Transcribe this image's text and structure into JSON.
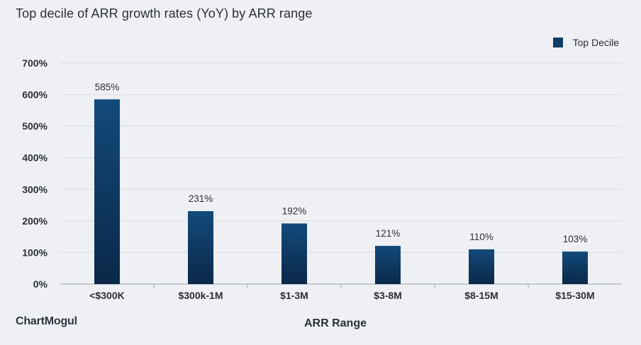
{
  "header": {
    "title": "Top decile of ARR growth rates (YoY) by ARR range"
  },
  "brand": {
    "name": "ChartMogul"
  },
  "chart_data": {
    "type": "bar",
    "title": "Top decile of ARR growth rates (YoY) by ARR range",
    "xlabel": "ARR Range",
    "ylabel": "",
    "categories": [
      "<$300K",
      "$300k-1M",
      "$1-3M",
      "$3-8M",
      "$8-15M",
      "$15-30M"
    ],
    "series": [
      {
        "name": "Top Decile",
        "values": [
          585,
          231,
          192,
          121,
          110,
          103
        ],
        "color": "#0f3d66"
      }
    ],
    "data_labels": [
      "585%",
      "231%",
      "192%",
      "121%",
      "110%",
      "103%"
    ],
    "ylim": [
      0,
      700
    ],
    "yticks": [
      "0%",
      "100%",
      "200%",
      "300%",
      "400%",
      "500%",
      "600%",
      "700%"
    ],
    "grid": true,
    "legend_position": "top-right"
  }
}
